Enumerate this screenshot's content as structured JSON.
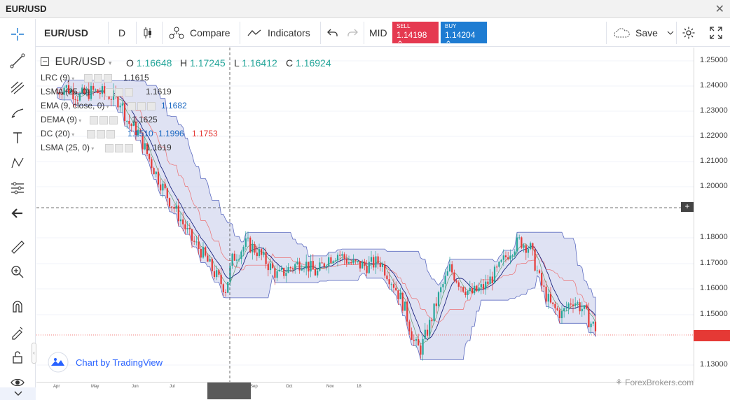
{
  "window": {
    "title": "EUR/USD"
  },
  "toolbar": {
    "symbol": "EUR/USD",
    "interval": "D",
    "compare_label": "Compare",
    "indicators_label": "Indicators",
    "price_mode": "MID",
    "sell_label": "SELL",
    "sell_price": "1.14198",
    "buy_label": "BUY",
    "buy_price": "1.14204",
    "save_label": "Save"
  },
  "legend": {
    "symbol": "EUR/USD",
    "o_label": "O",
    "o_value": "1.16648",
    "h_label": "H",
    "h_value": "1.17245",
    "l_label": "L",
    "l_value": "1.16412",
    "c_label": "C",
    "c_value": "1.16924",
    "indicators": [
      {
        "name": "LRC (9)",
        "values": [
          "1.1615"
        ],
        "colors": [
          "#333333"
        ]
      },
      {
        "name": "LSMA (25, 0)",
        "values": [
          "1.1619"
        ],
        "colors": [
          "#333333"
        ]
      },
      {
        "name": "EMA (9, close, 0)",
        "values": [
          "1.1682"
        ],
        "colors": [
          "#1565c0"
        ]
      },
      {
        "name": "DEMA (9)",
        "values": [
          "1.1625"
        ],
        "colors": [
          "#333333"
        ]
      },
      {
        "name": "DC (20)",
        "values": [
          "1.1510",
          "1.1996",
          "1.1753"
        ],
        "colors": [
          "#1565c0",
          "#1565c0",
          "#e53935"
        ]
      },
      {
        "name": "LSMA (25, 0)",
        "values": [
          "1.1619"
        ],
        "colors": [
          "#333333"
        ]
      }
    ]
  },
  "price_axis": {
    "ticks": [
      "1.25000",
      "1.24000",
      "1.23000",
      "1.22000",
      "1.21000",
      "1.20000",
      "1.18000",
      "1.17000",
      "1.16000",
      "1.15000",
      "1.13000"
    ]
  },
  "time_axis": {
    "labels": [
      "Apr",
      "May",
      "Jun",
      "Jul",
      "Sep",
      "Oct",
      "Nov",
      "18"
    ]
  },
  "watermark": "Chart by TradingView",
  "fb_watermark": "ForexBrokers.com",
  "colors": {
    "up": "#26a69a",
    "down": "#e53935",
    "band": "#c5cae9",
    "sell": "#e53950",
    "buy": "#1e7cd2"
  }
}
